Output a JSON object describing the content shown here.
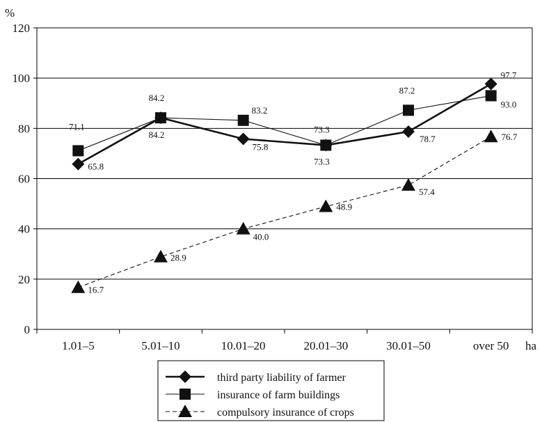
{
  "chart_data": {
    "type": "line",
    "ylabel": "%",
    "xlabel": "ha",
    "ylim": [
      0,
      120
    ],
    "yticks": [
      "0",
      "20",
      "40",
      "60",
      "80",
      "100",
      "120"
    ],
    "grid": true,
    "legend_position": "bottom-center",
    "categories": [
      "1.01–5",
      "5.01–10",
      "10.01–20",
      "20.01–30",
      "30.01–50",
      "over 50"
    ],
    "series": [
      {
        "name": "third party liability of farmer",
        "marker": "diamond",
        "style": "solid-thick",
        "values": [
          65.8,
          84.2,
          75.8,
          73.3,
          78.7,
          97.7
        ],
        "labels": [
          "65.8",
          "84.2",
          "75.8",
          "73.3",
          "78.7",
          "97.7"
        ]
      },
      {
        "name": "insurance of farm buildings",
        "marker": "square",
        "style": "solid-thin",
        "values": [
          71.1,
          84.2,
          83.2,
          73.3,
          87.2,
          93.0
        ],
        "labels": [
          "71.1",
          "84.2",
          "83.2",
          "73.3",
          "87.2",
          "93.0"
        ]
      },
      {
        "name": "compulsory insurance of crops",
        "marker": "triangle",
        "style": "dashed",
        "values": [
          16.7,
          28.9,
          40.0,
          48.9,
          57.4,
          76.7
        ],
        "labels": [
          "16.7",
          "28.9",
          "40.0",
          "48.9",
          "57.4",
          "76.7"
        ]
      }
    ]
  }
}
